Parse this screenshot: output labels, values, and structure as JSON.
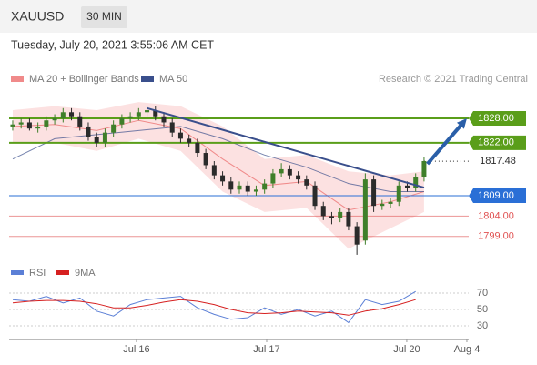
{
  "header": {
    "symbol": "XAUUSD",
    "interval": "30 MIN",
    "timestamp": "Tuesday, July 20, 2021 3:55:06 AM CET",
    "credit": "Research © 2021 Trading Central"
  },
  "chart_data": [
    {
      "type": "candlestick",
      "x": [
        0,
        1,
        2,
        3,
        4,
        5,
        6,
        7,
        8,
        9,
        10,
        11,
        12,
        13,
        14,
        15,
        16,
        17,
        18,
        19,
        20,
        21,
        22,
        23,
        24,
        25,
        26,
        27,
        28,
        29,
        30,
        31,
        32,
        33,
        34,
        35,
        36,
        37,
        38,
        39,
        40,
        41,
        42,
        43,
        44,
        45,
        46,
        47,
        48,
        49
      ],
      "open": [
        1826,
        1826.5,
        1827,
        1825.5,
        1826,
        1827.5,
        1828,
        1829.5,
        1828.5,
        1826,
        1823.5,
        1822,
        1824.5,
        1826.5,
        1828,
        1828.5,
        1829.5,
        1830,
        1828.5,
        1827,
        1824.5,
        1823,
        1822,
        1819.5,
        1816.5,
        1814,
        1812.5,
        1810.5,
        1811.5,
        1810,
        1810.5,
        1812,
        1814.5,
        1815.5,
        1814,
        1813,
        1811.5,
        1806.5,
        1804,
        1803.5,
        1805,
        1801.5,
        1798,
        1813,
        1806.5,
        1807,
        1807.5,
        1811.5,
        1811,
        1813.5
      ],
      "high": [
        1827.5,
        1828,
        1828,
        1827,
        1828.5,
        1829,
        1830.5,
        1830.5,
        1829.5,
        1827,
        1824.5,
        1825.5,
        1827.5,
        1829,
        1829.5,
        1830.5,
        1831,
        1831,
        1829.5,
        1828,
        1825.5,
        1824,
        1823,
        1820.5,
        1817.5,
        1815,
        1813.5,
        1812.5,
        1812.5,
        1811.5,
        1813,
        1815.5,
        1817,
        1816.5,
        1815,
        1814,
        1812.5,
        1807.5,
        1805,
        1806,
        1806,
        1802.5,
        1814.5,
        1814,
        1808,
        1808.5,
        1812.5,
        1812.5,
        1814.5,
        1818.5
      ],
      "low": [
        1825,
        1825.5,
        1825,
        1824.5,
        1825,
        1826.5,
        1827,
        1827.5,
        1825,
        1822.5,
        1821,
        1821,
        1823.5,
        1825.5,
        1827,
        1827.5,
        1828.5,
        1827.5,
        1826,
        1823.5,
        1822,
        1821,
        1818.5,
        1815.5,
        1813,
        1811.5,
        1809.5,
        1809.5,
        1809,
        1809,
        1809.5,
        1811,
        1813.5,
        1813,
        1812,
        1810.5,
        1805.5,
        1803,
        1802,
        1802.5,
        1800.5,
        1794.5,
        1797,
        1805,
        1805.5,
        1806,
        1806.5,
        1810,
        1810,
        1812.5
      ],
      "close": [
        1826.5,
        1827,
        1825.5,
        1826,
        1827.5,
        1828,
        1829.5,
        1828.5,
        1826,
        1823.5,
        1822,
        1824.5,
        1826.5,
        1828,
        1828.5,
        1829.5,
        1830,
        1828.5,
        1827,
        1824.5,
        1823,
        1822,
        1819.5,
        1816.5,
        1814,
        1812.5,
        1810.5,
        1811.5,
        1810,
        1810.5,
        1812,
        1814.5,
        1815.5,
        1814,
        1813,
        1811.5,
        1806.5,
        1804,
        1803.5,
        1805,
        1801.5,
        1797,
        1813,
        1806.5,
        1807,
        1807.5,
        1811.5,
        1811,
        1813.5,
        1817.5
      ],
      "up_color": "#3f7f2a",
      "down_color": "#2b2b2b",
      "xlim": [
        -0.43,
        54.32
      ],
      "ylim": [
        1793.36,
        1835.82
      ],
      "band": {
        "name": "MA 20 + Bollinger Bands",
        "color": "#f08a8a",
        "fill": "#fbd9d9",
        "x": [
          0,
          5,
          10,
          15,
          20,
          25,
          30,
          35,
          40,
          45,
          49
        ],
        "upper": [
          1830,
          1831,
          1830,
          1832,
          1831,
          1826,
          1818,
          1819,
          1815,
          1814,
          1815
        ],
        "lower": [
          1822,
          1822,
          1820,
          1823,
          1820,
          1810,
          1805,
          1806,
          1796,
          1801,
          1805
        ],
        "values": [
          1826,
          1826.5,
          1825,
          1827.5,
          1825.5,
          1818,
          1811.5,
          1812.5,
          1805.5,
          1807.5,
          1810
        ]
      },
      "ma50": {
        "name": "MA 50",
        "color": "#3a4f8c",
        "x": [
          0,
          5,
          10,
          15,
          20,
          25,
          30,
          35,
          40,
          45,
          49
        ],
        "values": [
          1818,
          1823,
          1824,
          1825,
          1826,
          1823,
          1819,
          1816,
          1812,
          1810,
          1810
        ]
      },
      "trendline": {
        "color": "#3a4f8c",
        "x": [
          16,
          49
        ],
        "values": [
          1830.5,
          1811
        ]
      },
      "arrow": {
        "color": "#2a5fa8",
        "x": [
          49.4,
          54.1
        ],
        "values": [
          1816.8,
          1828
        ]
      },
      "levels": [
        {
          "value": 1828,
          "label": "1828.00",
          "color": "#5a9e1a",
          "style": "box"
        },
        {
          "value": 1822,
          "label": "1822.00",
          "color": "#5a9e1a",
          "style": "box"
        },
        {
          "value": 1817.48,
          "label": "1817.48",
          "color": "#2b2b2b",
          "style": "current"
        },
        {
          "value": 1809,
          "label": "1809.00",
          "color": "#2a6fd6",
          "style": "box"
        },
        {
          "value": 1804,
          "label": "1804.00",
          "color": "#e05050",
          "style": "text"
        },
        {
          "value": 1799,
          "label": "1799.00",
          "color": "#e05050",
          "style": "text"
        }
      ]
    },
    {
      "type": "line",
      "xlim": [
        -0.43,
        54.32
      ],
      "ylim": [
        14.4,
        81.1
      ],
      "yticks": [
        30,
        50,
        70
      ],
      "xticks": [
        {
          "value": 14.74,
          "label": "Jul 16"
        },
        {
          "value": 30.25,
          "label": "Jul 17"
        },
        {
          "value": 46.94,
          "label": "Jul 20"
        },
        {
          "value": 54.1,
          "label": "Aug 4"
        }
      ],
      "x": [
        0,
        2,
        4,
        6,
        8,
        10,
        12,
        14,
        16,
        18,
        20,
        22,
        24,
        26,
        28,
        30,
        32,
        34,
        36,
        38,
        40,
        42,
        44,
        46,
        48
      ],
      "series": [
        {
          "name": "RSI",
          "color": "#5b7fd6",
          "values": [
            62,
            60,
            66,
            58,
            64,
            48,
            42,
            56,
            62,
            64,
            66,
            52,
            44,
            38,
            40,
            52,
            44,
            50,
            42,
            48,
            34,
            62,
            56,
            60,
            72
          ]
        },
        {
          "name": "9MA",
          "color": "#d62020",
          "values": [
            58,
            60,
            61,
            61,
            60,
            57,
            52,
            52,
            55,
            59,
            62,
            60,
            56,
            50,
            46,
            45,
            46,
            48,
            47,
            46,
            43,
            48,
            51,
            56,
            62
          ]
        }
      ]
    }
  ]
}
